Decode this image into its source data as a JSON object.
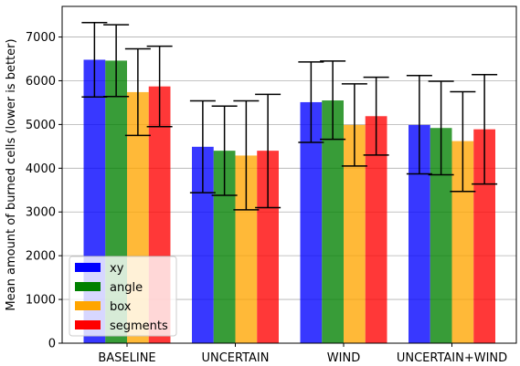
{
  "chart_data": {
    "type": "bar",
    "title": "",
    "xlabel": "",
    "ylabel": "Mean amount of burned cells (lower is better)",
    "categories": [
      "BASELINE",
      "UNCERTAIN",
      "WIND",
      "UNCERTAIN+WIND"
    ],
    "ylim": [
      0,
      7700
    ],
    "yticks": [
      0,
      1000,
      2000,
      3000,
      4000,
      5000,
      6000,
      7000
    ],
    "grid": "horizontal",
    "legend_position": "lower-left",
    "series": [
      {
        "name": "xy",
        "color": "#0000ff",
        "values": [
          6480,
          4490,
          5510,
          4990
        ],
        "error_low": [
          5630,
          3440,
          4590,
          3870
        ],
        "error_high": [
          7330,
          5540,
          6430,
          6120
        ]
      },
      {
        "name": "angle",
        "color": "#008000",
        "values": [
          6460,
          4400,
          5550,
          4920
        ],
        "error_low": [
          5640,
          3380,
          4660,
          3850
        ],
        "error_high": [
          7280,
          5420,
          6450,
          5990
        ]
      },
      {
        "name": "box",
        "color": "#ffa500",
        "values": [
          5740,
          4290,
          4990,
          4620
        ],
        "error_low": [
          4750,
          3050,
          4050,
          3470
        ],
        "error_high": [
          6730,
          5540,
          5930,
          5750
        ]
      },
      {
        "name": "segments",
        "color": "#ff0000",
        "values": [
          5870,
          4400,
          5190,
          4890
        ],
        "error_low": [
          4950,
          3100,
          4300,
          3640
        ],
        "error_high": [
          6790,
          5690,
          6080,
          6140
        ]
      }
    ]
  }
}
